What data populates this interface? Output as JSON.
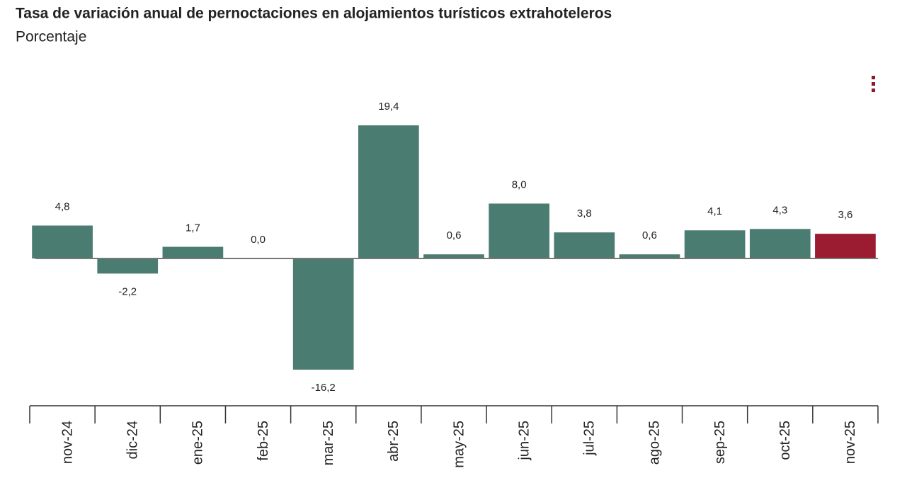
{
  "chart_data": {
    "type": "bar",
    "title": "Tasa de variación anual de pernoctaciones en alojamientos turísticos extrahoteleros",
    "subtitle": "Porcentaje",
    "categories": [
      "nov-24",
      "dic-24",
      "ene-25",
      "feb-25",
      "mar-25",
      "abr-25",
      "may-25",
      "jun-25",
      "jul-25",
      "ago-25",
      "sep-25",
      "oct-25",
      "nov-25"
    ],
    "values": [
      4.8,
      -2.2,
      1.7,
      0.0,
      -16.2,
      19.4,
      0.6,
      8.0,
      3.8,
      0.6,
      4.1,
      4.3,
      3.6
    ],
    "value_labels": [
      "4,8",
      "-2,2",
      "1,7",
      "0,0",
      "-16,2",
      "19,4",
      "0,6",
      "8,0",
      "3,8",
      "0,6",
      "4,1",
      "4,3",
      "3,6"
    ],
    "colors": [
      "#4a7c72",
      "#4a7c72",
      "#4a7c72",
      "#4a7c72",
      "#4a7c72",
      "#4a7c72",
      "#4a7c72",
      "#4a7c72",
      "#4a7c72",
      "#4a7c72",
      "#4a7c72",
      "#4a7c72",
      "#9b1b30"
    ]
  }
}
